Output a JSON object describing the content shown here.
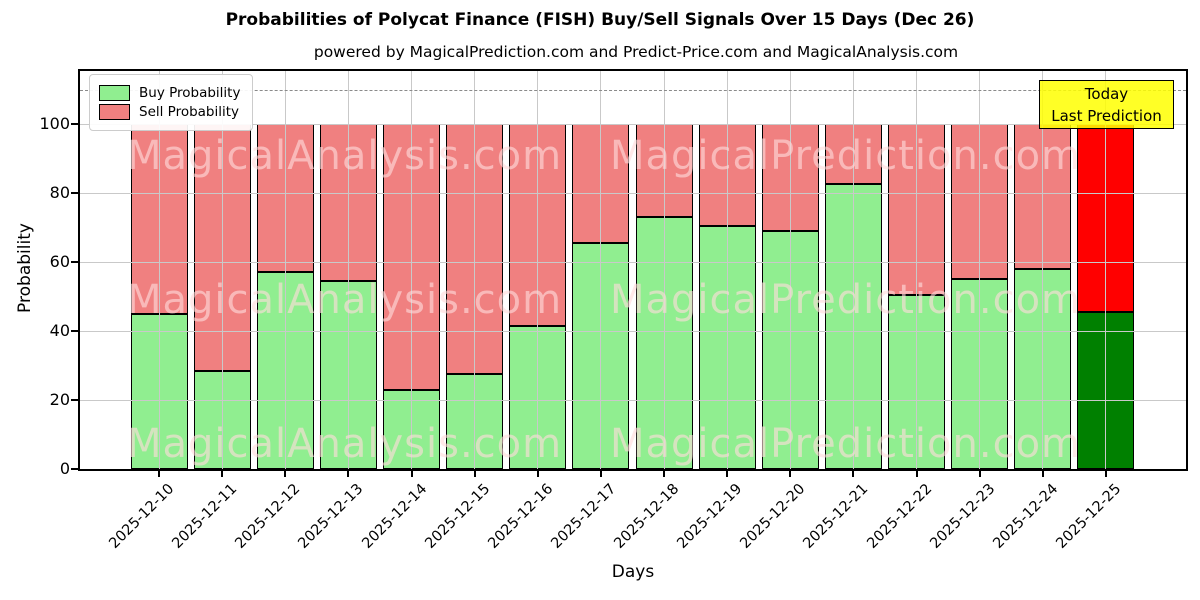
{
  "header": {
    "title": "Probabilities of Polycat Finance (FISH) Buy/Sell Signals Over 15 Days (Dec 26)",
    "subtitle": "powered by MagicalPrediction.com and Predict-Price.com and MagicalAnalysis.com"
  },
  "legend": {
    "buy_label": "Buy Probability",
    "sell_label": "Sell Probability"
  },
  "annotation": {
    "line1": "Today",
    "line2": "Last Prediction"
  },
  "watermarks": {
    "left": "MagicalAnalysis.com",
    "right": "MagicalPrediction.com"
  },
  "colors": {
    "buy": "#90EE90",
    "sell": "#F08080",
    "buy_last": "#008000",
    "sell_last": "#FF0000",
    "bar_edge": "#000000",
    "annotation_bg": "#FFFF00",
    "grid": "#c9c9c9",
    "dashed_line": "#8a8a8a"
  },
  "chart_data": {
    "type": "bar",
    "stacked": true,
    "title": "Probabilities of Polycat Finance (FISH) Buy/Sell Signals Over 15 Days (Dec 26)",
    "xlabel": "Days",
    "ylabel": "Probability",
    "categories": [
      "2025-12-10",
      "2025-12-11",
      "2025-12-12",
      "2025-12-13",
      "2025-12-14",
      "2025-12-15",
      "2025-12-16",
      "2025-12-17",
      "2025-12-18",
      "2025-12-19",
      "2025-12-20",
      "2025-12-21",
      "2025-12-22",
      "2025-12-23",
      "2025-12-24",
      "2025-12-25"
    ],
    "series": [
      {
        "name": "Buy Probability",
        "values": [
          45,
          28.5,
          57,
          54.5,
          23,
          27.5,
          41.5,
          65.5,
          73,
          70.5,
          69,
          82.5,
          50.5,
          55,
          58,
          45.5
        ]
      },
      {
        "name": "Sell Probability",
        "values": [
          55,
          71.5,
          43,
          45.5,
          77,
          72.5,
          58.5,
          34.5,
          27,
          29.5,
          31,
          17.5,
          49.5,
          45,
          42,
          54.5
        ]
      }
    ],
    "highlight_last_bar": true,
    "ylim": [
      0,
      115.4
    ],
    "yticks": [
      0,
      20,
      40,
      60,
      80,
      100
    ],
    "gridline_values": [
      20,
      40,
      60,
      80,
      100
    ],
    "vertical_grid": true,
    "dashed_line_y": 110,
    "legend_position": "upper left",
    "annotation_text": "Today Last Prediction"
  }
}
